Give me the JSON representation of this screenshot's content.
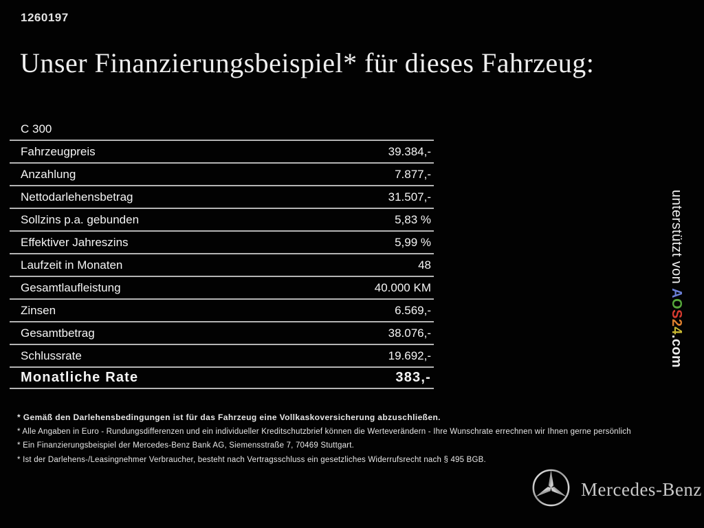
{
  "page": {
    "id_number": "1260197",
    "title": "Unser Finanzierungsbeispiel* für dieses Fahrzeug:"
  },
  "finance_table": {
    "model": "C 300",
    "rows": [
      {
        "label": "Fahrzeugpreis",
        "value": "39.384,-"
      },
      {
        "label": "Anzahlung",
        "value": "7.877,-"
      },
      {
        "label": "Nettodarlehensbetrag",
        "value": "31.507,-"
      },
      {
        "label": "Sollzins p.a. gebunden",
        "value": "5,83 %"
      },
      {
        "label": "Effektiver Jahreszins",
        "value": "5,99 %"
      },
      {
        "label": "Laufzeit in Monaten",
        "value": "48"
      },
      {
        "label": "Gesamtlaufleistung",
        "value": "40.000 KM"
      },
      {
        "label": "Zinsen",
        "value": "6.569,-"
      },
      {
        "label": "Gesamtbetrag",
        "value": "38.076,-"
      },
      {
        "label": "Schlussrate",
        "value": "19.692,-"
      }
    ],
    "total_row": {
      "label": "Monatliche Rate",
      "value": "383,-"
    }
  },
  "footnotes": [
    "* Gemäß den Darlehensbedingungen ist für das Fahrzeug eine Vollkaskoversicherung abzuschließen.",
    "* Alle Angaben in Euro - Rundungsdifferenzen und ein individueller Kreditschutzbrief können die Werteverändern - Ihre Wunschrate errechnen wir Ihnen gerne persönlich",
    "* Ein Finanzierungsbeispiel der Mercedes-Benz Bank AG, Siemensstraße 7, 70469 Stuttgart.",
    "* Ist der Darlehens-/Leasingnehmer Verbraucher, besteht nach Vertragsschluss ein gesetzliches Widerrufsrecht nach § 495 BGB."
  ],
  "side_credit": {
    "supported_by": "unterstützt von ",
    "logo_letters": [
      {
        "char": "A",
        "color": "#6b7fd6"
      },
      {
        "char": "O",
        "color": "#56a83b"
      },
      {
        "char": "S",
        "color": "#d93b30"
      },
      {
        "char": "2",
        "color": "#e0812f"
      },
      {
        "char": "4",
        "color": "#c9b832"
      }
    ],
    "domain_suffix": ".com"
  },
  "footer": {
    "brand": "Mercedes-Benz",
    "star_color_light": "#f0f0f0",
    "star_color_dark": "#8a8a8a"
  }
}
